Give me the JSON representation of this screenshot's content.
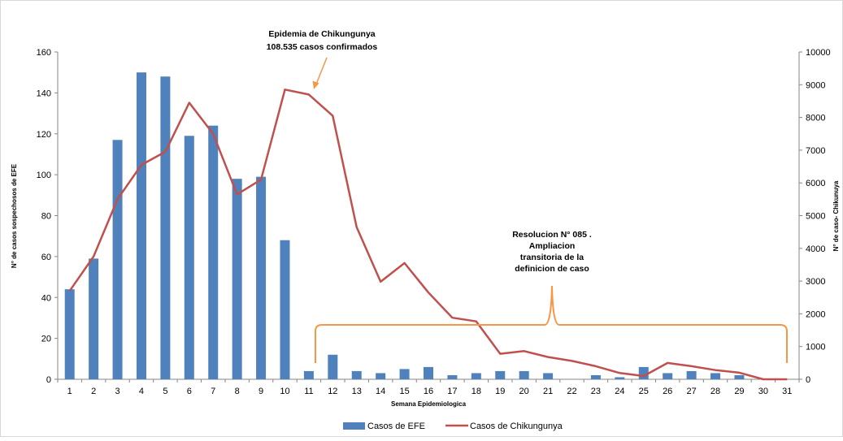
{
  "chart_data": {
    "type": "bar",
    "xlabel": "Semana Epidemiologica",
    "ylabel": "N° de casos sospechosos de EFE",
    "y2label": "N° de caso- Chikunuya",
    "categories": [
      "1",
      "2",
      "3",
      "4",
      "5",
      "6",
      "7",
      "8",
      "9",
      "10",
      "11",
      "12",
      "13",
      "14",
      "15",
      "16",
      "17",
      "18",
      "19",
      "20",
      "21",
      "22",
      "23",
      "24",
      "25",
      "26",
      "27",
      "28",
      "29",
      "30",
      "31"
    ],
    "ylim": [
      0,
      160
    ],
    "y2lim": [
      0,
      10000
    ],
    "y_ticks": [
      "0",
      "20",
      "40",
      "60",
      "80",
      "100",
      "120",
      "140",
      "160"
    ],
    "y2_ticks": [
      "0",
      "1000",
      "2000",
      "3000",
      "4000",
      "5000",
      "6000",
      "7000",
      "8000",
      "9000",
      "10000"
    ],
    "series": [
      {
        "name": "Casos de EFE",
        "type": "bar",
        "axis": "left",
        "color": "#4F81BD",
        "values": [
          44,
          59,
          117,
          150,
          148,
          119,
          124,
          98,
          99,
          68,
          4,
          12,
          4,
          3,
          5,
          6,
          2,
          3,
          4,
          4,
          3,
          0,
          2,
          1,
          6,
          3,
          4,
          3,
          2,
          0,
          0
        ]
      },
      {
        "name": "Casos de Chikungunya",
        "type": "line",
        "axis": "right",
        "color": "#C0504D",
        "values": [
          2700,
          3750,
          5500,
          6550,
          6950,
          8450,
          7500,
          5650,
          6100,
          8850,
          8700,
          8050,
          4650,
          2980,
          3550,
          2650,
          1880,
          1770,
          780,
          860,
          680,
          560,
          400,
          190,
          100,
          500,
          400,
          280,
          200,
          0,
          0
        ]
      }
    ],
    "annotations": [
      {
        "lines": [
          "Epidemia de Chikungunya",
          "108.535 casos confirmados"
        ],
        "color": "#F79646"
      },
      {
        "lines": [
          "Resolucion N° 085 .",
          "Ampliacion",
          "transitoria de la",
          "definicion de caso"
        ],
        "color": "#F79646"
      }
    ],
    "legend": "bottom",
    "grid": false
  }
}
